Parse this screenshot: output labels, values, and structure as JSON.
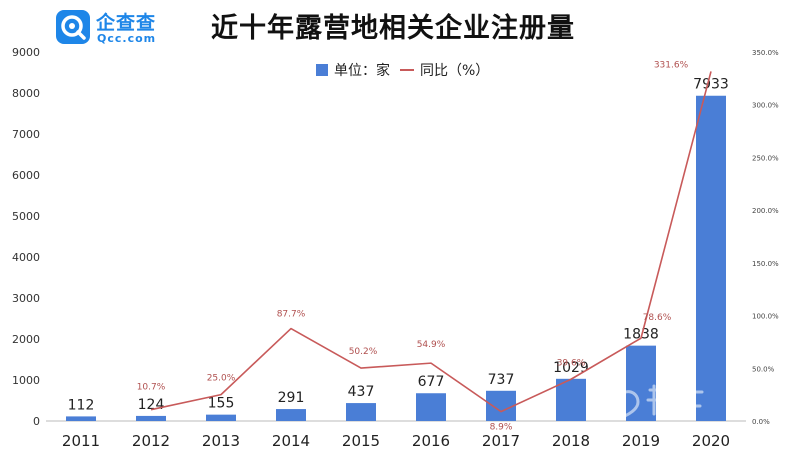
{
  "header": {
    "logo_cn": "企查查",
    "logo_en": "Qcc.com",
    "title": "近十年露营地相关企业注册量"
  },
  "legend": {
    "bar_label": "单位：家",
    "line_label": "同比（%）"
  },
  "colors": {
    "bar": "#4a7ed6",
    "line": "#c85a5a",
    "line_label": "#b0504f",
    "brand": "#1e86e8"
  },
  "chart_data": {
    "type": "bar",
    "title": "近十年露营地相关企业注册量",
    "categories": [
      "2011",
      "2012",
      "2013",
      "2014",
      "2015",
      "2016",
      "2017",
      "2018",
      "2019",
      "2020"
    ],
    "series": [
      {
        "name": "单位：家",
        "type": "bar",
        "axis": "left",
        "values": [
          112,
          124,
          155,
          291,
          437,
          677,
          737,
          1029,
          1838,
          7933
        ]
      },
      {
        "name": "同比（%）",
        "type": "line",
        "axis": "right",
        "values": [
          null,
          10.7,
          25.0,
          87.7,
          50.2,
          54.9,
          8.9,
          39.6,
          78.6,
          331.6
        ],
        "labels": [
          "",
          "10.7%",
          "25.0%",
          "87.7%",
          "50.2%",
          "54.9%",
          "8.9%",
          "39.6%",
          "78.6%",
          "331.6%"
        ]
      }
    ],
    "y_left": {
      "min": 0,
      "max": 9000,
      "ticks": [
        0,
        1000,
        2000,
        3000,
        4000,
        5000,
        6000,
        7000,
        8000,
        9000
      ]
    },
    "y_right": {
      "min": 0,
      "max": 350,
      "ticks": [
        0,
        50,
        100,
        150,
        200,
        250,
        300,
        350
      ],
      "tick_labels": [
        "0.0%",
        "50.0%",
        "100.0%",
        "150.0%",
        "200.0%",
        "250.0%",
        "300.0%",
        "350.0%"
      ]
    },
    "grid": false,
    "legend_position": "top-center"
  }
}
